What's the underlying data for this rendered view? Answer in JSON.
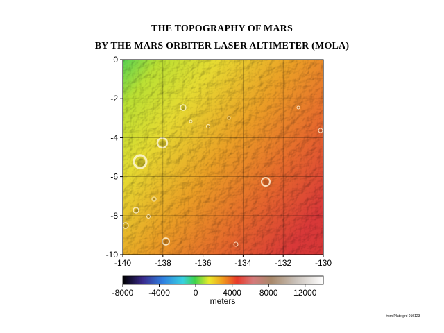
{
  "title_line1": "THE TOPOGRAPHY OF MARS",
  "title_line2": "BY THE MARS ORBITER LASER ALTIMETER (MOLA)",
  "map": {
    "x_ticks": [
      "-140",
      "-138",
      "-136",
      "-134",
      "-132",
      "-130"
    ],
    "y_ticks": [
      "0",
      "-2",
      "-4",
      "-6",
      "-8",
      "-10"
    ],
    "x_range": [
      -140,
      -130
    ],
    "y_range": [
      -10,
      0
    ],
    "grid": true,
    "shading": "hillshade elevation, low (yellow-green) in northwest to high (red) in southeast"
  },
  "colorbar": {
    "tick_labels": [
      "-8000",
      "-4000",
      "0",
      "4000",
      "8000",
      "12000"
    ],
    "label": "meters",
    "range": [
      -8000,
      14000
    ],
    "colors": [
      "#000000",
      "#3a2a8c",
      "#2f7fe0",
      "#38d0e0",
      "#3fd24a",
      "#e9e92a",
      "#f09a1e",
      "#e8392a",
      "#d47a7a",
      "#a8886a",
      "#c8c0b8",
      "#ffffff"
    ]
  },
  "credit": "from Plate grd 010123"
}
